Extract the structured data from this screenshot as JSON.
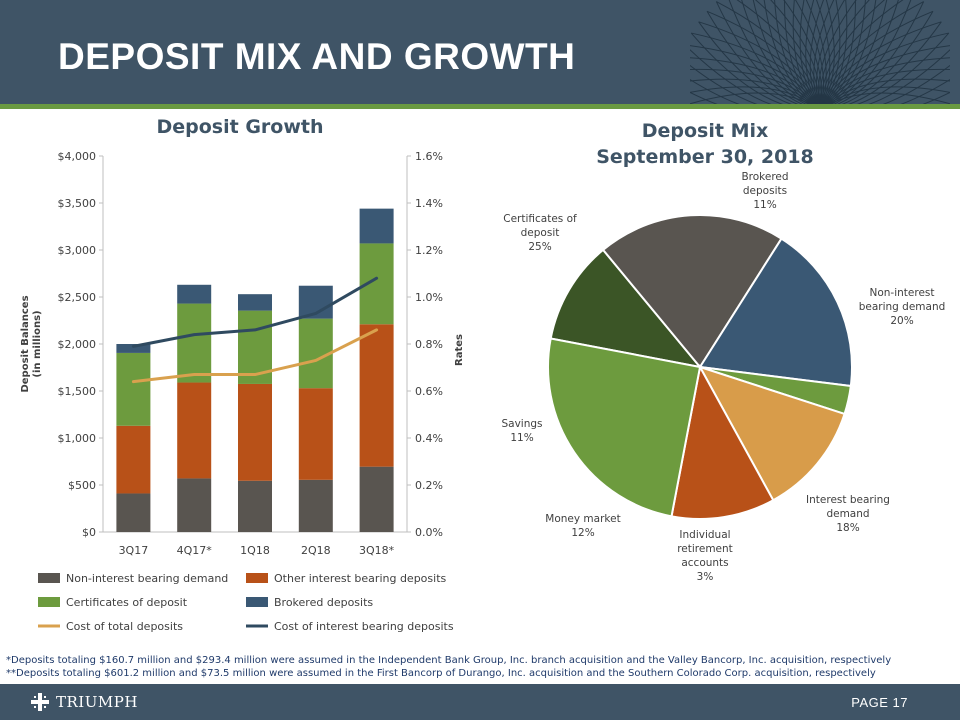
{
  "header": {
    "title": "DEPOSIT MIX AND GROWTH"
  },
  "colors": {
    "header_bg": "#3f5466",
    "accent_line": "#6a9a42"
  },
  "chart_data": [
    {
      "type": "bar",
      "stacked": true,
      "title": "Deposit Growth",
      "categories": [
        "3Q17",
        "4Q17*",
        "1Q18",
        "2Q18",
        "3Q18*"
      ],
      "ylabel": "Deposit Balances (in millions)",
      "y2label": "Rates",
      "ylim": [
        0,
        4000
      ],
      "y2lim": [
        0,
        1.6
      ],
      "yticks": [
        "$0",
        "$500",
        "$1,000",
        "$1,500",
        "$2,000",
        "$2,500",
        "$3,000",
        "$3,500",
        "$4,000"
      ],
      "y2ticks": [
        "0.0%",
        "0.2%",
        "0.4%",
        "0.6%",
        "0.8%",
        "1.0%",
        "1.2%",
        "1.4%",
        "1.6%"
      ],
      "grid": false,
      "legend_position": "bottom",
      "series": [
        {
          "name": "Non-interest bearing demand",
          "kind": "bar",
          "color": "#595550",
          "values": [
            410,
            570,
            545,
            555,
            695
          ]
        },
        {
          "name": "Other interest bearing deposits",
          "kind": "bar",
          "color": "#b85118",
          "values": [
            720,
            1020,
            1030,
            975,
            1515
          ]
        },
        {
          "name": "Certificates of deposit",
          "kind": "bar",
          "color": "#6d9b3e",
          "values": [
            775,
            840,
            780,
            740,
            860
          ]
        },
        {
          "name": "Brokered deposits",
          "kind": "bar",
          "color": "#3a5874",
          "values": [
            95,
            200,
            175,
            350,
            370
          ]
        },
        {
          "name": "Cost of total deposits",
          "kind": "line",
          "axis": "y2",
          "color": "#d9a14e",
          "values": [
            0.64,
            0.67,
            0.67,
            0.73,
            0.86
          ]
        },
        {
          "name": "Cost of interest bearing deposits",
          "kind": "line",
          "axis": "y2",
          "color": "#2f4a60",
          "values": [
            0.79,
            0.84,
            0.86,
            0.93,
            1.08
          ]
        }
      ]
    },
    {
      "type": "pie",
      "title_line1": "Deposit Mix",
      "title_line2": "September 30, 2018",
      "slices": [
        {
          "label": "Brokered deposits",
          "label_lines": [
            "Brokered",
            "deposits"
          ],
          "pct_label": "11%",
          "value": 11,
          "color": "#3b5526"
        },
        {
          "label": "Non-interest bearing demand",
          "label_lines": [
            "Non-interest",
            "bearing demand"
          ],
          "pct_label": "20%",
          "value": 20,
          "color": "#595550"
        },
        {
          "label": "Interest bearing demand",
          "label_lines": [
            "Interest bearing",
            "demand"
          ],
          "pct_label": "18%",
          "value": 18,
          "color": "#3a5874"
        },
        {
          "label": "Individual retirement accounts",
          "label_lines": [
            "Individual",
            "retirement",
            "accounts"
          ],
          "pct_label": "3%",
          "value": 3,
          "color": "#6d9b3e"
        },
        {
          "label": "Money market",
          "label_lines": [
            "Money market"
          ],
          "pct_label": "12%",
          "value": 12,
          "color": "#d89c4a"
        },
        {
          "label": "Savings",
          "label_lines": [
            "Savings"
          ],
          "pct_label": "11%",
          "value": 11,
          "color": "#b85118"
        },
        {
          "label": "Certificates of deposit",
          "label_lines": [
            "Certificates of",
            "deposit"
          ],
          "pct_label": "25%",
          "value": 25,
          "color": "#6d9b3e"
        }
      ]
    }
  ],
  "footnotes": [
    "*Deposits totaling $160.7 million and $293.4 million were assumed in the Independent Bank Group, Inc. branch acquisition and the Valley Bancorp, Inc. acquisition, respectively",
    "**Deposits totaling $601.2 million and $73.5 million were assumed in the First Bancorp of Durango, Inc. acquisition and the Southern Colorado Corp. acquisition, respectively"
  ],
  "footer": {
    "logo_text": "TRIUMPH",
    "page_label": "PAGE 17",
    "logo_icon": "triumph-cross-icon"
  }
}
